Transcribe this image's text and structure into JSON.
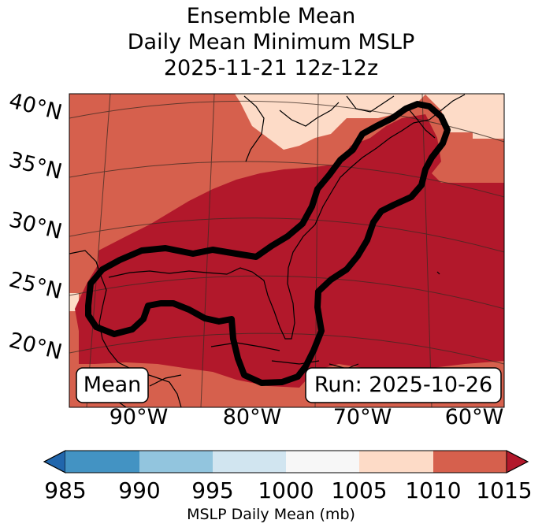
{
  "title": {
    "line1": "Ensemble Mean",
    "line2": "Daily Mean Minimum MSLP",
    "line3": "2025-11-21 12z-12z"
  },
  "map": {
    "lat_labels": [
      "40°N",
      "35°N",
      "30°N",
      "25°N",
      "20°N"
    ],
    "lon_labels": [
      "90°W",
      "80°W",
      "70°W",
      "60°W"
    ],
    "mean_box": "Mean",
    "run_box": "Run: 2025-10-26",
    "fill_colors": {
      "band_1010_1015": "#d6604d",
      "band_1015_plus": "#b2182b",
      "band_1005_1010": "#fddbc7",
      "contour": "#000000"
    }
  },
  "colorbar": {
    "label": "MSLP Daily Mean (mb)",
    "ticks": [
      "985",
      "990",
      "995",
      "1000",
      "1005",
      "1010",
      "1015"
    ],
    "colors": [
      "#2166ac",
      "#4393c3",
      "#92c5de",
      "#d1e5f0",
      "#f7f7f7",
      "#fddbc7",
      "#d6604d",
      "#b2182b"
    ]
  }
}
